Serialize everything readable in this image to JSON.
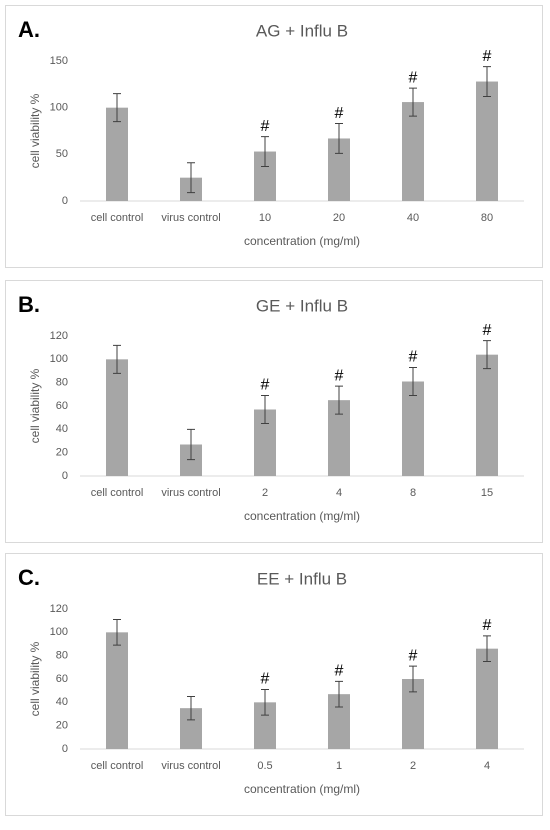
{
  "chart_data": [
    {
      "type": "bar",
      "panel_label": "A.",
      "title": "AG + Influ B",
      "ylabel": "cell viability %",
      "xlabel": "concentration (mg/ml)",
      "categories": [
        "cell control",
        "virus control",
        "10",
        "20",
        "40",
        "80"
      ],
      "values": [
        100,
        25,
        53,
        67,
        106,
        128
      ],
      "errors": [
        15,
        16,
        16,
        16,
        15,
        16
      ],
      "annotations": [
        null,
        null,
        "#",
        "#",
        "#",
        "#"
      ],
      "color": "#a6a6a6",
      "ylim": [
        0,
        150
      ],
      "yticks": [
        0,
        50,
        100,
        150
      ],
      "grid": false
    },
    {
      "type": "bar",
      "panel_label": "B.",
      "title": "GE + Influ B",
      "ylabel": "cell viability %",
      "xlabel": "concentration (mg/ml)",
      "categories": [
        "cell control",
        "virus control",
        "2",
        "4",
        "8",
        "15"
      ],
      "values": [
        100,
        27,
        57,
        65,
        81,
        104
      ],
      "errors": [
        12,
        13,
        12,
        12,
        12,
        12
      ],
      "annotations": [
        null,
        null,
        "#",
        "#",
        "#",
        "#"
      ],
      "color": "#a6a6a6",
      "ylim": [
        0,
        120
      ],
      "yticks": [
        0,
        20,
        40,
        60,
        80,
        100,
        120
      ],
      "grid": false
    },
    {
      "type": "bar",
      "panel_label": "C.",
      "title": "EE + Influ B",
      "ylabel": "cell viability %",
      "xlabel": "concentration (mg/ml)",
      "categories": [
        "cell control",
        "virus control",
        "0.5",
        "1",
        "2",
        "4"
      ],
      "values": [
        100,
        35,
        40,
        47,
        60,
        86
      ],
      "errors": [
        11,
        10,
        11,
        11,
        11,
        11
      ],
      "annotations": [
        null,
        null,
        "#",
        "#",
        "#",
        "#"
      ],
      "color": "#a6a6a6",
      "ylim": [
        0,
        120
      ],
      "yticks": [
        0,
        20,
        40,
        60,
        80,
        100,
        120
      ],
      "grid": false
    }
  ]
}
